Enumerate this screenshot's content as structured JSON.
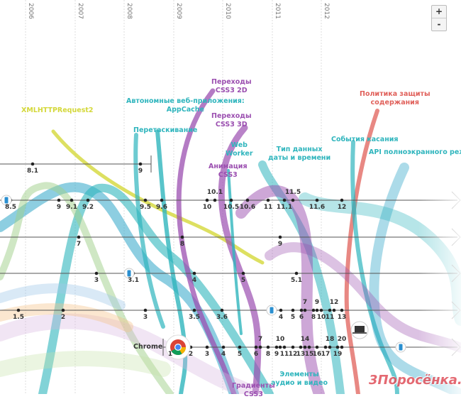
{
  "years": [
    "2006",
    "2007",
    "2008",
    "2009",
    "2010",
    "2011",
    "2012"
  ],
  "zoom": {
    "in_label": "+",
    "out_label": "-"
  },
  "features": [
    {
      "text": "XMLHTTPRequest2",
      "color": "#d4d83a"
    },
    {
      "text": "Автономные веб-приложения:\nAppCache",
      "color": "#2fb5bd"
    },
    {
      "text": "Перетаскивание",
      "color": "#2fb5bd"
    },
    {
      "text": "Переходы\nCSS3 2D",
      "color": "#9b4fb0"
    },
    {
      "text": "Переходы\nCSS3 3D",
      "color": "#9b4fb0"
    },
    {
      "text": "Web\nWorker",
      "color": "#2fb5bd"
    },
    {
      "text": "Анимация\nCSS3",
      "color": "#9b4fb0"
    },
    {
      "text": "Тип данных\nдаты и времени",
      "color": "#2fb5bd"
    },
    {
      "text": "Политика защиты\nсодержания",
      "color": "#e0605a"
    },
    {
      "text": "События касания",
      "color": "#2fb5bd"
    },
    {
      "text": "API полноэкранного режим",
      "color": "#2fb5bd"
    },
    {
      "text": "Элементы\nаудио и видео",
      "color": "#2fb5bd"
    },
    {
      "text": "Градиенты\nCSS3",
      "color": "#9b4fb0"
    }
  ],
  "timelines": [
    {
      "name": "browser-1",
      "versions": [
        "8.1",
        "9"
      ]
    },
    {
      "name": "browser-2",
      "versions": [
        "8.5",
        "9",
        "9.1",
        "9.2",
        "9.5",
        "9.6",
        "10",
        "10.1",
        "10.5",
        "10.6",
        "11",
        "11.1",
        "11.5",
        "11.6",
        "12"
      ]
    },
    {
      "name": "browser-3",
      "versions": [
        "7",
        "8",
        "9"
      ]
    },
    {
      "name": "browser-4",
      "versions": [
        "3",
        "3.1",
        "4",
        "5",
        "5.1"
      ]
    },
    {
      "name": "browser-5",
      "versions": [
        "1.5",
        "2",
        "3",
        "3.5",
        "3.6",
        "4",
        "5",
        "6",
        "7",
        "8",
        "9",
        "10",
        "11",
        "12",
        "13"
      ]
    },
    {
      "name": "chrome",
      "label": "Chrome",
      "versions": [
        "1",
        "2",
        "3",
        "4",
        "5",
        "6",
        "7",
        "8",
        "9",
        "10",
        "11",
        "12",
        "13",
        "14",
        "15",
        "16",
        "17",
        "18",
        "19",
        "20"
      ]
    }
  ],
  "watermark": "3Поросёнка.ру"
}
